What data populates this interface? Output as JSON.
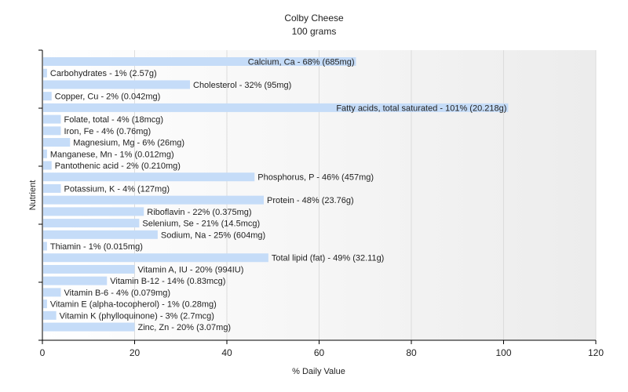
{
  "chart_data": {
    "type": "bar",
    "orientation": "horizontal",
    "title": "Colby Cheese",
    "subtitle": "100 grams",
    "xlabel": "% Daily Value",
    "ylabel": "Nutrient",
    "xlim": [
      0,
      120
    ],
    "xticks": [
      "0",
      "20",
      "40",
      "60",
      "80",
      "100",
      "120"
    ],
    "grid": true,
    "bar_color": "#c5dcf8",
    "categories": [
      "Calcium, Ca",
      "Carbohydrates",
      "Cholesterol",
      "Copper, Cu",
      "Fatty acids, total saturated",
      "Folate, total",
      "Iron, Fe",
      "Magnesium, Mg",
      "Manganese, Mn",
      "Pantothenic acid",
      "Phosphorus, P",
      "Potassium, K",
      "Protein",
      "Riboflavin",
      "Selenium, Se",
      "Sodium, Na",
      "Thiamin",
      "Total lipid (fat)",
      "Vitamin A, IU",
      "Vitamin B-12",
      "Vitamin B-6",
      "Vitamin E (alpha-tocopherol)",
      "Vitamin K (phylloquinone)",
      "Zinc, Zn"
    ],
    "values": [
      68,
      1,
      32,
      2,
      101,
      4,
      4,
      6,
      1,
      2,
      46,
      4,
      48,
      22,
      21,
      25,
      1,
      49,
      20,
      14,
      4,
      1,
      3,
      20
    ],
    "labels": [
      "Calcium, Ca - 68% (685mg)",
      "Carbohydrates - 1% (2.57g)",
      "Cholesterol - 32% (95mg)",
      "Copper, Cu - 2% (0.042mg)",
      "Fatty acids, total saturated - 101% (20.218g)",
      "Folate, total - 4% (18mcg)",
      "Iron, Fe - 4% (0.76mg)",
      "Magnesium, Mg - 6% (26mg)",
      "Manganese, Mn - 1% (0.012mg)",
      "Pantothenic acid - 2% (0.210mg)",
      "Phosphorus, P - 46% (457mg)",
      "Potassium, K - 4% (127mg)",
      "Protein - 48% (23.76g)",
      "Riboflavin - 22% (0.375mg)",
      "Selenium, Se - 21% (14.5mcg)",
      "Sodium, Na - 25% (604mg)",
      "Thiamin - 1% (0.015mg)",
      "Total lipid (fat) - 49% (32.11g)",
      "Vitamin A, IU - 20% (994IU)",
      "Vitamin B-12 - 14% (0.83mcg)",
      "Vitamin B-6 - 4% (0.079mg)",
      "Vitamin E (alpha-tocopherol) - 1% (0.28mg)",
      "Vitamin K (phylloquinone) - 3% (2.7mcg)",
      "Zinc, Zn - 20% (3.07mg)"
    ]
  }
}
